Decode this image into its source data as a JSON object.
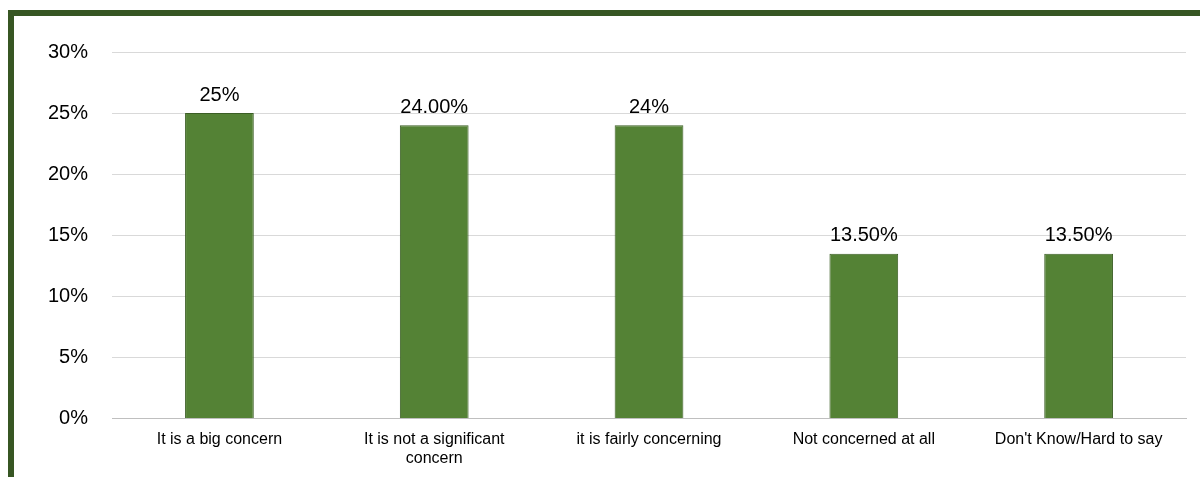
{
  "chart_data": {
    "type": "bar",
    "categories": [
      "It is a big concern",
      "It is not a significant concern",
      "it is fairly concerning",
      "Not concerned at all",
      "Don't Know/Hard to say"
    ],
    "values": [
      25,
      24,
      24,
      13.5,
      13.5
    ],
    "value_labels": [
      "25%",
      "24.00%",
      "24%",
      "13.50%",
      "13.50%"
    ],
    "color": "#548235",
    "ylim": [
      0,
      30
    ],
    "yticks": [
      {
        "value": 0,
        "label": "0%"
      },
      {
        "value": 5,
        "label": "5%"
      },
      {
        "value": 10,
        "label": "10%"
      },
      {
        "value": 15,
        "label": "15%"
      },
      {
        "value": 20,
        "label": "20%"
      },
      {
        "value": 25,
        "label": "25%"
      },
      {
        "value": 30,
        "label": "30%"
      }
    ],
    "grid": "y",
    "legend": false
  }
}
